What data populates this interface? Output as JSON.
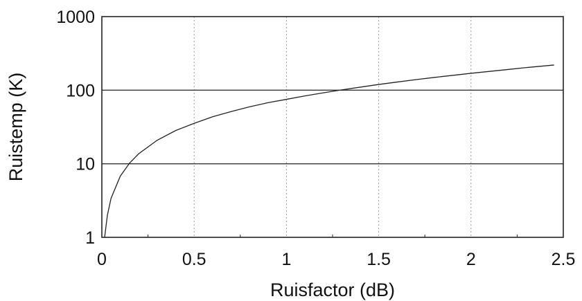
{
  "chart_data": {
    "type": "line",
    "title": "",
    "xlabel": "Ruisfactor (dB)",
    "ylabel": "Ruistemp (K)",
    "xlim": [
      0,
      2.5
    ],
    "ylim": [
      1,
      1000
    ],
    "yscale": "log",
    "grid": true,
    "legend": "none",
    "x_ticks": [
      0,
      0.5,
      1,
      1.5,
      2,
      2.5
    ],
    "x_tick_labels": [
      "0",
      "0.5",
      "1",
      "1.5",
      "2",
      "2.5"
    ],
    "y_ticks": [
      1,
      10,
      100,
      1000
    ],
    "y_tick_labels": [
      "1",
      "10",
      "100",
      "1000"
    ],
    "series": [
      {
        "color": "#222222",
        "x": [
          0.015,
          0.03,
          0.05,
          0.1,
          0.15,
          0.2,
          0.3,
          0.4,
          0.5,
          0.6,
          0.7,
          0.8,
          0.9,
          1.0,
          1.1,
          1.2,
          1.3,
          1.4,
          1.5,
          1.6,
          1.7,
          1.8,
          1.9,
          2.0,
          2.1,
          2.2,
          2.3,
          2.4,
          2.45
        ],
        "y": [
          1.0,
          2.0,
          3.4,
          6.8,
          10.2,
          13.7,
          20.9,
          28.3,
          35.4,
          43.5,
          51.2,
          59.4,
          67.6,
          75.1,
          83.6,
          92.1,
          101.0,
          110.0,
          119.6,
          129.0,
          139.0,
          149.0,
          159.0,
          169.6,
          180.0,
          191.0,
          203.0,
          214.0,
          220.0
        ]
      }
    ]
  }
}
